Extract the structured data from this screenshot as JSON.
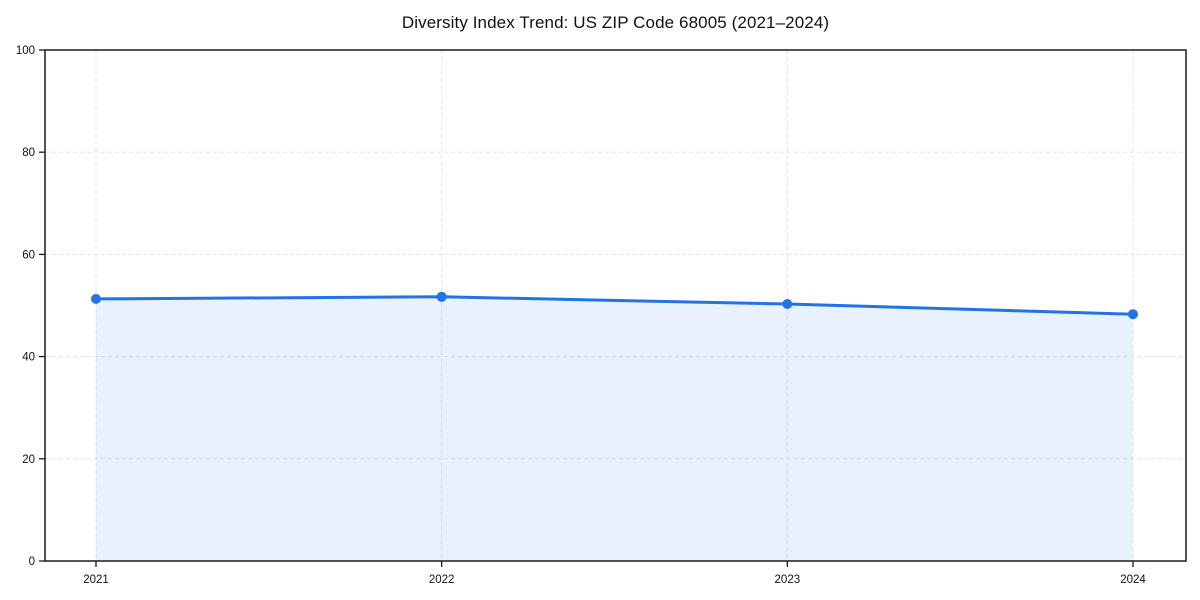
{
  "chart_data": {
    "type": "area",
    "title": "Diversity Index Trend: US ZIP Code 68005 (2021–2024)",
    "x": [
      2021,
      2022,
      2023,
      2024
    ],
    "xtick_labels": [
      "2021",
      "2022",
      "2023",
      "2024"
    ],
    "series": [
      {
        "name": "Diversity Index",
        "values": [
          51.3,
          51.7,
          50.3,
          48.3
        ]
      }
    ],
    "xlabel": "",
    "ylabel": "",
    "ylim": [
      0,
      100
    ],
    "yticks": [
      0,
      20,
      40,
      60,
      80,
      100
    ],
    "grid": true,
    "legend": "none",
    "colors": {
      "line": "#2273e6",
      "fill": "rgba(34, 115, 230, 0.10)",
      "grid": "#e4e4e4",
      "spine": "#1a1a1a",
      "tick_label": "#111111",
      "background": "#ffffff"
    }
  }
}
